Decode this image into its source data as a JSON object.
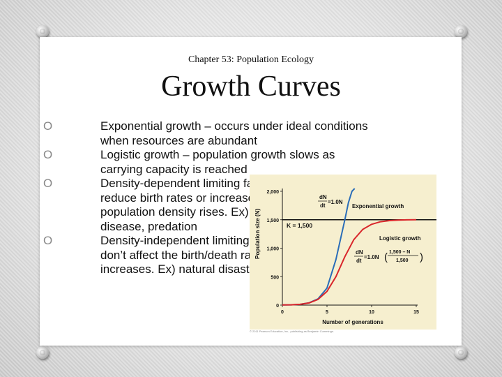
{
  "slide": {
    "subtitle": "Chapter 53: Population Ecology",
    "title": "Growth Curves",
    "bullet_marker": "O",
    "bullets": [
      {
        "line1": "Exponential growth – occurs under ideal conditions",
        "line2": "when resources are abundant"
      },
      {
        "line1": "Logistic growth – population growth slows as",
        "line2": "carrying capacity is reached"
      },
      {
        "line1": "Density-dependent limiting factors – factors that",
        "line2": "reduce birth rates or increase death rates as",
        "line3": "population density rises. Ex) competition,",
        "line4": "disease, predation"
      },
      {
        "line1": "Density-independent limiting factors – factors that",
        "line2": "don’t affect the birth/death rate as population",
        "line3": "increases. Ex) natural disasters"
      }
    ]
  },
  "chart_data": {
    "type": "line",
    "xlabel": "Number of generations",
    "ylabel": "Population size (N)",
    "xlim": [
      0,
      15
    ],
    "ylim": [
      0,
      2000
    ],
    "x_ticks": [
      "0",
      "5",
      "10",
      "15"
    ],
    "y_ticks": [
      "0",
      "500",
      "1,000",
      "1,500",
      "2,000"
    ],
    "carrying_capacity_label": "K = 1,500",
    "carrying_capacity": 1500,
    "series": [
      {
        "name": "Exponential growth",
        "color": "#2a6db8",
        "x": [
          0,
          1,
          2,
          3,
          4,
          5,
          6,
          6.5,
          7,
          7.4,
          7.8,
          8.1
        ],
        "y": [
          2,
          5,
          14,
          40,
          110,
          300,
          800,
          1150,
          1500,
          1800,
          2000,
          2050
        ]
      },
      {
        "name": "Logistic growth",
        "color": "#d9262b",
        "x": [
          0,
          1,
          2,
          3,
          4,
          5,
          6,
          7,
          8,
          9,
          10,
          11,
          12,
          13,
          14,
          15
        ],
        "y": [
          2,
          5,
          14,
          38,
          100,
          240,
          500,
          850,
          1150,
          1330,
          1420,
          1465,
          1485,
          1495,
          1498,
          1500
        ]
      }
    ],
    "equation_exponential": {
      "lhs_top": "dN",
      "lhs_bottom": "dt",
      "rhs": "=1.0N"
    },
    "equation_logistic": {
      "lhs_top": "dN",
      "lhs_bottom": "dt",
      "rhs": "=1.0N",
      "frac_top": "1,500 – N",
      "frac_bottom": "1,500"
    },
    "background": "#f6efcf",
    "credit": "© 2011 Pearson Education, Inc., publishing as Benjamin Cummings."
  }
}
